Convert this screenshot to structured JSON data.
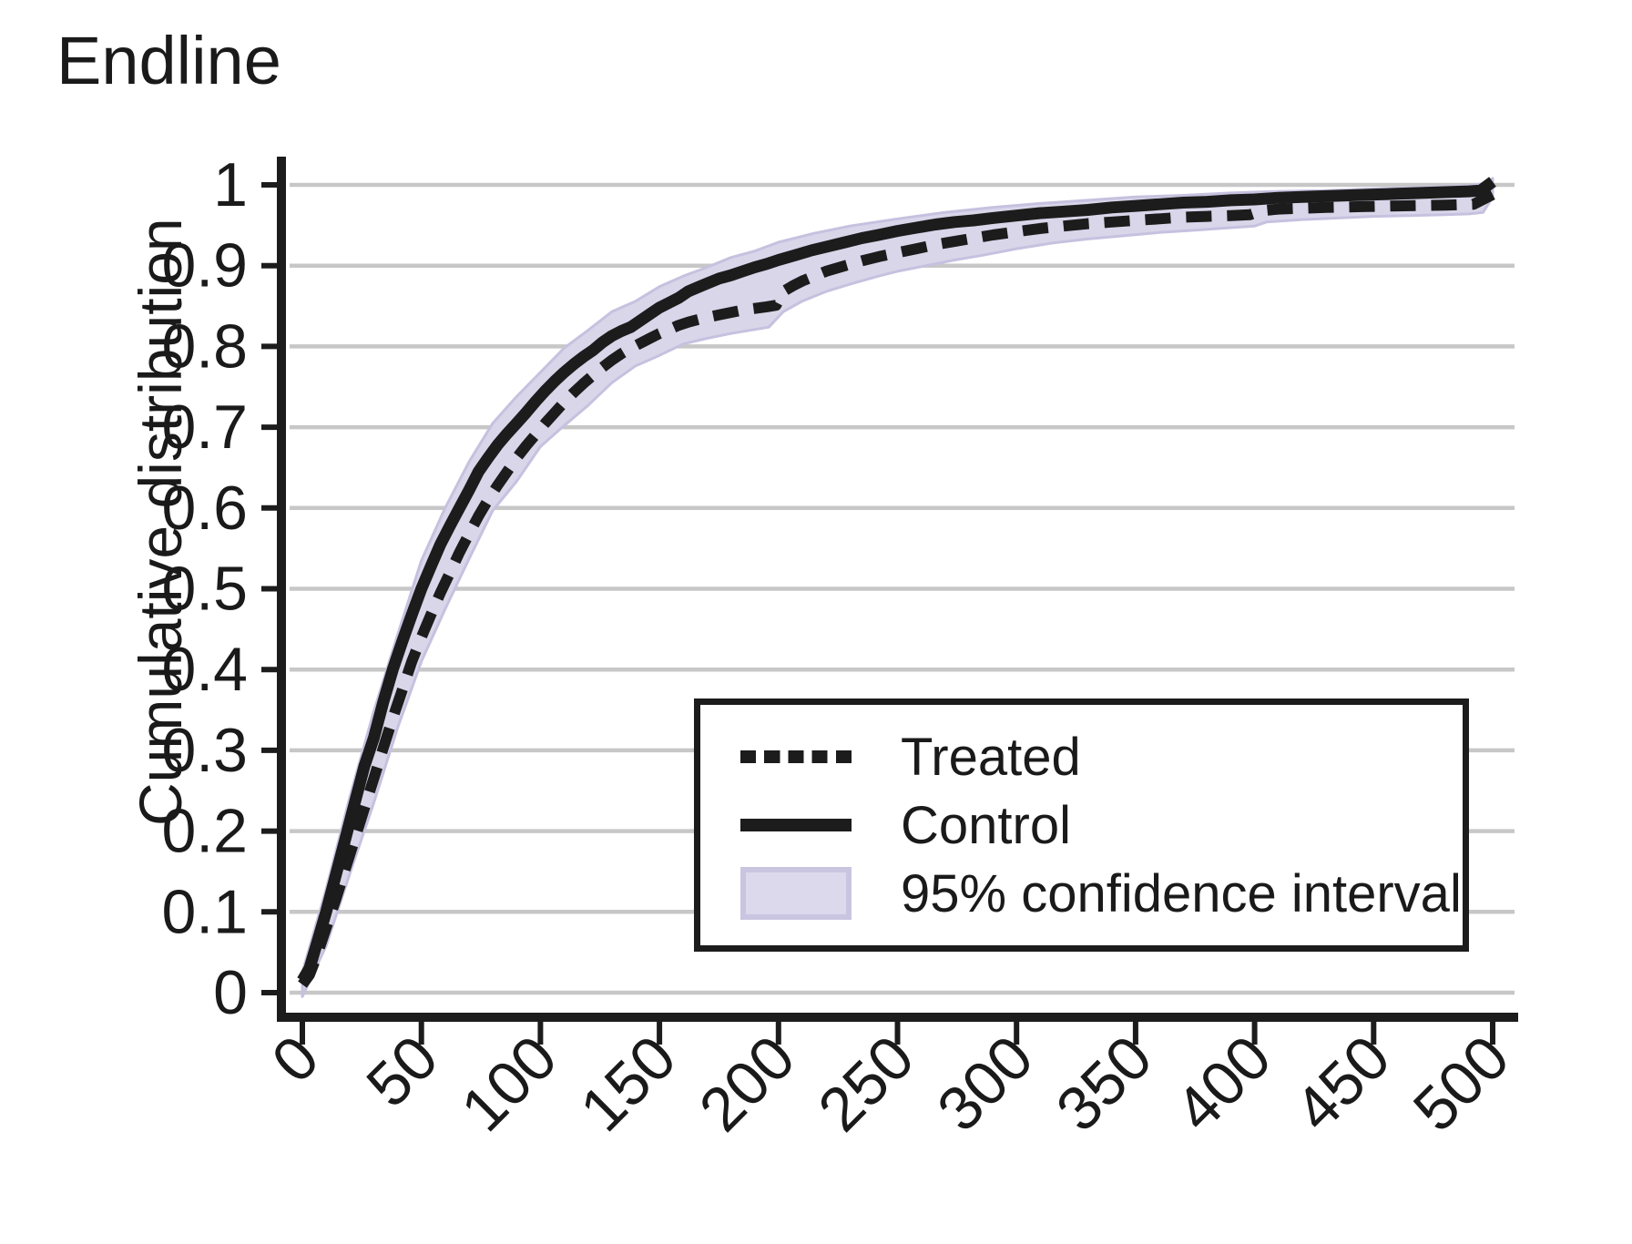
{
  "title": "Endline",
  "chart": {
    "ylabel": "Cumulative distribution"
  },
  "legend": {
    "items": [
      {
        "label": "Treated"
      },
      {
        "label": "Control"
      },
      {
        "label": "95% confidence interval"
      }
    ]
  },
  "colors": {
    "line": "#1c1c1c",
    "band_fill": "#d9d6ea",
    "band_edge": "#c6c1df",
    "gridline": "#c7c7c7",
    "text": "#1a1a1a",
    "background": "#ffffff"
  },
  "chart_data": {
    "type": "line",
    "title": "Endline",
    "xlabel": "",
    "ylabel": "Cumulative distribution",
    "xlim": [
      0,
      500
    ],
    "ylim": [
      0,
      1
    ],
    "grid": "horizontal",
    "legend_position": "inside-lower-right-box",
    "xticks": {
      "values": [
        0,
        50,
        100,
        150,
        200,
        250,
        300,
        350,
        400,
        450,
        500
      ],
      "labels": [
        "0",
        "50",
        "100",
        "150",
        "200",
        "250",
        "300",
        "350",
        "400",
        "450",
        "500"
      ]
    },
    "yticks": {
      "values": [
        0,
        0.1,
        0.2,
        0.3,
        0.4,
        0.5,
        0.6,
        0.7,
        0.8,
        0.9,
        1
      ],
      "labels": [
        "0",
        "0.1",
        "0.2",
        "0.3",
        "0.4",
        "0.5",
        "0.6",
        "0.7",
        "0.8",
        "0.9",
        "1"
      ]
    },
    "series": [
      {
        "name": "Control",
        "style": "solid",
        "points": [
          [
            0,
            0.015
          ],
          [
            3,
            0.03
          ],
          [
            6,
            0.06
          ],
          [
            10,
            0.1
          ],
          [
            14,
            0.145
          ],
          [
            18,
            0.19
          ],
          [
            22,
            0.235
          ],
          [
            26,
            0.28
          ],
          [
            30,
            0.315
          ],
          [
            34,
            0.36
          ],
          [
            38,
            0.4
          ],
          [
            42,
            0.435
          ],
          [
            46,
            0.468
          ],
          [
            50,
            0.5
          ],
          [
            54,
            0.528
          ],
          [
            58,
            0.555
          ],
          [
            62,
            0.578
          ],
          [
            66,
            0.6
          ],
          [
            70,
            0.622
          ],
          [
            74,
            0.645
          ],
          [
            78,
            0.662
          ],
          [
            82,
            0.678
          ],
          [
            86,
            0.692
          ],
          [
            90,
            0.705
          ],
          [
            94,
            0.718
          ],
          [
            98,
            0.732
          ],
          [
            102,
            0.745
          ],
          [
            106,
            0.757
          ],
          [
            110,
            0.768
          ],
          [
            114,
            0.778
          ],
          [
            118,
            0.787
          ],
          [
            122,
            0.795
          ],
          [
            126,
            0.805
          ],
          [
            130,
            0.813
          ],
          [
            134,
            0.819
          ],
          [
            138,
            0.824
          ],
          [
            142,
            0.832
          ],
          [
            146,
            0.84
          ],
          [
            150,
            0.848
          ],
          [
            154,
            0.854
          ],
          [
            158,
            0.86
          ],
          [
            162,
            0.868
          ],
          [
            166,
            0.873
          ],
          [
            170,
            0.878
          ],
          [
            175,
            0.884
          ],
          [
            180,
            0.888
          ],
          [
            185,
            0.893
          ],
          [
            190,
            0.898
          ],
          [
            195,
            0.902
          ],
          [
            200,
            0.907
          ],
          [
            207,
            0.913
          ],
          [
            214,
            0.919
          ],
          [
            221,
            0.924
          ],
          [
            228,
            0.929
          ],
          [
            235,
            0.934
          ],
          [
            242,
            0.938
          ],
          [
            250,
            0.943
          ],
          [
            258,
            0.947
          ],
          [
            266,
            0.951
          ],
          [
            274,
            0.954
          ],
          [
            282,
            0.956
          ],
          [
            290,
            0.959
          ],
          [
            300,
            0.962
          ],
          [
            310,
            0.965
          ],
          [
            320,
            0.967
          ],
          [
            330,
            0.969
          ],
          [
            340,
            0.972
          ],
          [
            350,
            0.974
          ],
          [
            360,
            0.976
          ],
          [
            370,
            0.978
          ],
          [
            380,
            0.979
          ],
          [
            390,
            0.981
          ],
          [
            400,
            0.982
          ],
          [
            410,
            0.984
          ],
          [
            420,
            0.985
          ],
          [
            430,
            0.986
          ],
          [
            440,
            0.987
          ],
          [
            450,
            0.988
          ],
          [
            460,
            0.989
          ],
          [
            470,
            0.99
          ],
          [
            480,
            0.991
          ],
          [
            490,
            0.992
          ],
          [
            495,
            0.993
          ],
          [
            500,
            1.004
          ]
        ]
      },
      {
        "name": "Treated",
        "style": "dashed",
        "points": [
          [
            0,
            0.01
          ],
          [
            3,
            0.022
          ],
          [
            6,
            0.045
          ],
          [
            10,
            0.08
          ],
          [
            14,
            0.115
          ],
          [
            18,
            0.153
          ],
          [
            22,
            0.19
          ],
          [
            26,
            0.228
          ],
          [
            30,
            0.265
          ],
          [
            34,
            0.303
          ],
          [
            38,
            0.34
          ],
          [
            42,
            0.375
          ],
          [
            46,
            0.41
          ],
          [
            50,
            0.44
          ],
          [
            54,
            0.468
          ],
          [
            58,
            0.495
          ],
          [
            62,
            0.52
          ],
          [
            66,
            0.545
          ],
          [
            70,
            0.568
          ],
          [
            74,
            0.59
          ],
          [
            78,
            0.61
          ],
          [
            82,
            0.628
          ],
          [
            86,
            0.645
          ],
          [
            90,
            0.662
          ],
          [
            94,
            0.677
          ],
          [
            98,
            0.691
          ],
          [
            102,
            0.705
          ],
          [
            106,
            0.718
          ],
          [
            110,
            0.731
          ],
          [
            114,
            0.743
          ],
          [
            118,
            0.754
          ],
          [
            122,
            0.764
          ],
          [
            126,
            0.774
          ],
          [
            130,
            0.783
          ],
          [
            134,
            0.791
          ],
          [
            138,
            0.798
          ],
          [
            142,
            0.804
          ],
          [
            146,
            0.81
          ],
          [
            150,
            0.816
          ],
          [
            154,
            0.821
          ],
          [
            158,
            0.826
          ],
          [
            162,
            0.83
          ],
          [
            166,
            0.833
          ],
          [
            170,
            0.836
          ],
          [
            175,
            0.839
          ],
          [
            180,
            0.842
          ],
          [
            185,
            0.845
          ],
          [
            190,
            0.847
          ],
          [
            195,
            0.849
          ],
          [
            199,
            0.851
          ],
          [
            202,
            0.868
          ],
          [
            206,
            0.875
          ],
          [
            210,
            0.881
          ],
          [
            215,
            0.887
          ],
          [
            220,
            0.893
          ],
          [
            228,
            0.9
          ],
          [
            235,
            0.906
          ],
          [
            242,
            0.911
          ],
          [
            250,
            0.916
          ],
          [
            258,
            0.921
          ],
          [
            266,
            0.926
          ],
          [
            274,
            0.93
          ],
          [
            282,
            0.934
          ],
          [
            290,
            0.938
          ],
          [
            300,
            0.942
          ],
          [
            310,
            0.946
          ],
          [
            320,
            0.949
          ],
          [
            330,
            0.952
          ],
          [
            340,
            0.954
          ],
          [
            350,
            0.956
          ],
          [
            360,
            0.958
          ],
          [
            370,
            0.96
          ],
          [
            380,
            0.961
          ],
          [
            390,
            0.962
          ],
          [
            398,
            0.963
          ],
          [
            403,
            0.968
          ],
          [
            410,
            0.97
          ],
          [
            420,
            0.971
          ],
          [
            430,
            0.972
          ],
          [
            445,
            0.973
          ],
          [
            460,
            0.974
          ],
          [
            480,
            0.975
          ],
          [
            492,
            0.976
          ],
          [
            500,
            0.988
          ]
        ]
      },
      {
        "name": "95% confidence interval",
        "style": "band",
        "upper": [
          [
            0,
            0.025
          ],
          [
            10,
            0.128
          ],
          [
            20,
            0.243
          ],
          [
            30,
            0.348
          ],
          [
            40,
            0.443
          ],
          [
            50,
            0.535
          ],
          [
            60,
            0.6
          ],
          [
            70,
            0.657
          ],
          [
            80,
            0.705
          ],
          [
            90,
            0.738
          ],
          [
            100,
            0.768
          ],
          [
            110,
            0.798
          ],
          [
            120,
            0.82
          ],
          [
            130,
            0.843
          ],
          [
            140,
            0.856
          ],
          [
            150,
            0.874
          ],
          [
            160,
            0.887
          ],
          [
            170,
            0.898
          ],
          [
            180,
            0.91
          ],
          [
            190,
            0.918
          ],
          [
            200,
            0.929
          ],
          [
            215,
            0.94
          ],
          [
            230,
            0.949
          ],
          [
            250,
            0.958
          ],
          [
            270,
            0.966
          ],
          [
            290,
            0.972
          ],
          [
            310,
            0.977
          ],
          [
            330,
            0.981
          ],
          [
            350,
            0.985
          ],
          [
            370,
            0.987
          ],
          [
            390,
            0.99
          ],
          [
            410,
            0.992
          ],
          [
            430,
            0.993
          ],
          [
            450,
            0.995
          ],
          [
            470,
            0.997
          ],
          [
            490,
            0.999
          ],
          [
            497,
            1.002
          ],
          [
            500,
            1.008
          ]
        ],
        "lower": [
          [
            0,
            -0.005
          ],
          [
            10,
            0.058
          ],
          [
            20,
            0.148
          ],
          [
            30,
            0.235
          ],
          [
            40,
            0.328
          ],
          [
            50,
            0.41
          ],
          [
            60,
            0.475
          ],
          [
            70,
            0.537
          ],
          [
            80,
            0.597
          ],
          [
            90,
            0.633
          ],
          [
            100,
            0.676
          ],
          [
            110,
            0.702
          ],
          [
            120,
            0.727
          ],
          [
            130,
            0.755
          ],
          [
            140,
            0.776
          ],
          [
            150,
            0.789
          ],
          [
            160,
            0.803
          ],
          [
            170,
            0.81
          ],
          [
            180,
            0.816
          ],
          [
            190,
            0.821
          ],
          [
            196,
            0.824
          ],
          [
            202,
            0.843
          ],
          [
            210,
            0.856
          ],
          [
            220,
            0.868
          ],
          [
            230,
            0.877
          ],
          [
            242,
            0.887
          ],
          [
            250,
            0.893
          ],
          [
            262,
            0.9
          ],
          [
            274,
            0.907
          ],
          [
            286,
            0.913
          ],
          [
            300,
            0.921
          ],
          [
            315,
            0.928
          ],
          [
            330,
            0.933
          ],
          [
            345,
            0.937
          ],
          [
            360,
            0.941
          ],
          [
            375,
            0.944
          ],
          [
            390,
            0.947
          ],
          [
            400,
            0.949
          ],
          [
            405,
            0.954
          ],
          [
            420,
            0.957
          ],
          [
            435,
            0.959
          ],
          [
            450,
            0.961
          ],
          [
            465,
            0.962
          ],
          [
            480,
            0.963
          ],
          [
            490,
            0.964
          ],
          [
            496,
            0.966
          ],
          [
            500,
            0.985
          ]
        ]
      }
    ]
  }
}
